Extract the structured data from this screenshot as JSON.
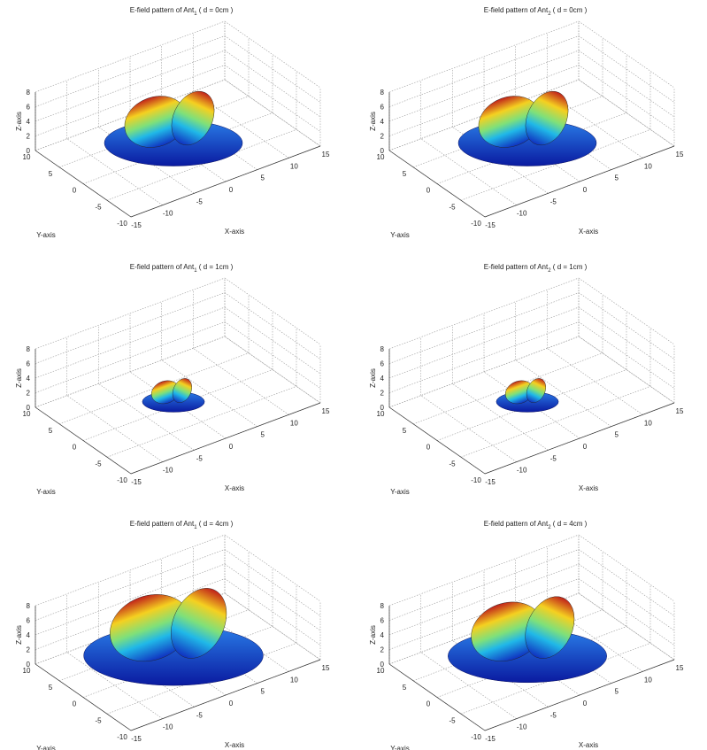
{
  "chart_data": [
    {
      "type": "surface3d",
      "title": {
        "text": "E-field pattern of Ant",
        "subscript": "1",
        "suffix": " ( d = 0cm )"
      },
      "x_label": "X-axis",
      "y_label": "Y-axis",
      "z_label": "Z-axis",
      "xlim": [
        -15,
        15
      ],
      "ylim": [
        -10,
        10
      ],
      "zlim": [
        0,
        8
      ],
      "xticks": [
        -15,
        -10,
        -5,
        0,
        5,
        10,
        15
      ],
      "yticks": [
        -10,
        -5,
        0,
        5,
        10
      ],
      "zticks": [
        0,
        2,
        4,
        6,
        8
      ],
      "grid": true
    },
    {
      "type": "surface3d",
      "title": {
        "text": "E-field pattern of Ant",
        "subscript": "2",
        "suffix": " ( d = 0cm )"
      },
      "x_label": "X-axis",
      "y_label": "Y-axis",
      "z_label": "Z-axis",
      "xlim": [
        -15,
        15
      ],
      "ylim": [
        -10,
        10
      ],
      "zlim": [
        0,
        8
      ],
      "xticks": [
        -15,
        -10,
        -5,
        0,
        5,
        10,
        15
      ],
      "yticks": [
        -10,
        -5,
        0,
        5,
        10
      ],
      "zticks": [
        0,
        2,
        4,
        6,
        8
      ],
      "grid": true
    },
    {
      "type": "surface3d",
      "title": {
        "text": "E-field pattern of Ant",
        "subscript": "1",
        "suffix": " ( d = 1cm )"
      },
      "x_label": "X-axis",
      "y_label": "Y-axis",
      "z_label": "Z-axis",
      "xlim": [
        -15,
        15
      ],
      "ylim": [
        -10,
        10
      ],
      "zlim": [
        0,
        8
      ],
      "xticks": [
        -15,
        -10,
        -5,
        0,
        5,
        10,
        15
      ],
      "yticks": [
        -10,
        -5,
        0,
        5,
        10
      ],
      "zticks": [
        0,
        2,
        4,
        6,
        8
      ],
      "grid": true
    },
    {
      "type": "surface3d",
      "title": {
        "text": "E-field pattern of Ant",
        "subscript": "2",
        "suffix": " ( d = 1cm )"
      },
      "x_label": "X-axis",
      "y_label": "Y-axis",
      "z_label": "Z-axis",
      "xlim": [
        -15,
        15
      ],
      "ylim": [
        -10,
        10
      ],
      "zlim": [
        0,
        8
      ],
      "xticks": [
        -15,
        -10,
        -5,
        0,
        5,
        10,
        15
      ],
      "yticks": [
        -10,
        -5,
        0,
        5,
        10
      ],
      "zticks": [
        0,
        2,
        4,
        6,
        8
      ],
      "grid": true
    },
    {
      "type": "surface3d",
      "title": {
        "text": "E-field pattern of Ant",
        "subscript": "1",
        "suffix": " ( d = 4cm )"
      },
      "x_label": "X-axis",
      "y_label": "Y-axis",
      "z_label": "Z-axis",
      "xlim": [
        -15,
        15
      ],
      "ylim": [
        -10,
        10
      ],
      "zlim": [
        0,
        8
      ],
      "xticks": [
        -15,
        -10,
        -5,
        0,
        5,
        10,
        15
      ],
      "yticks": [
        -10,
        -5,
        0,
        5,
        10
      ],
      "zticks": [
        0,
        2,
        4,
        6,
        8
      ],
      "grid": true
    },
    {
      "type": "surface3d",
      "title": {
        "text": "E-field pattern of Ant",
        "subscript": "2",
        "suffix": " ( d = 4cm )"
      },
      "x_label": "X-axis",
      "y_label": "Y-axis",
      "z_label": "Z-axis",
      "xlim": [
        -15,
        15
      ],
      "ylim": [
        -10,
        10
      ],
      "zlim": [
        0,
        8
      ],
      "xticks": [
        -15,
        -10,
        -5,
        0,
        5,
        10,
        15
      ],
      "yticks": [
        -10,
        -5,
        0,
        5,
        10
      ],
      "zticks": [
        0,
        2,
        4,
        6,
        8
      ],
      "grid": true
    }
  ]
}
